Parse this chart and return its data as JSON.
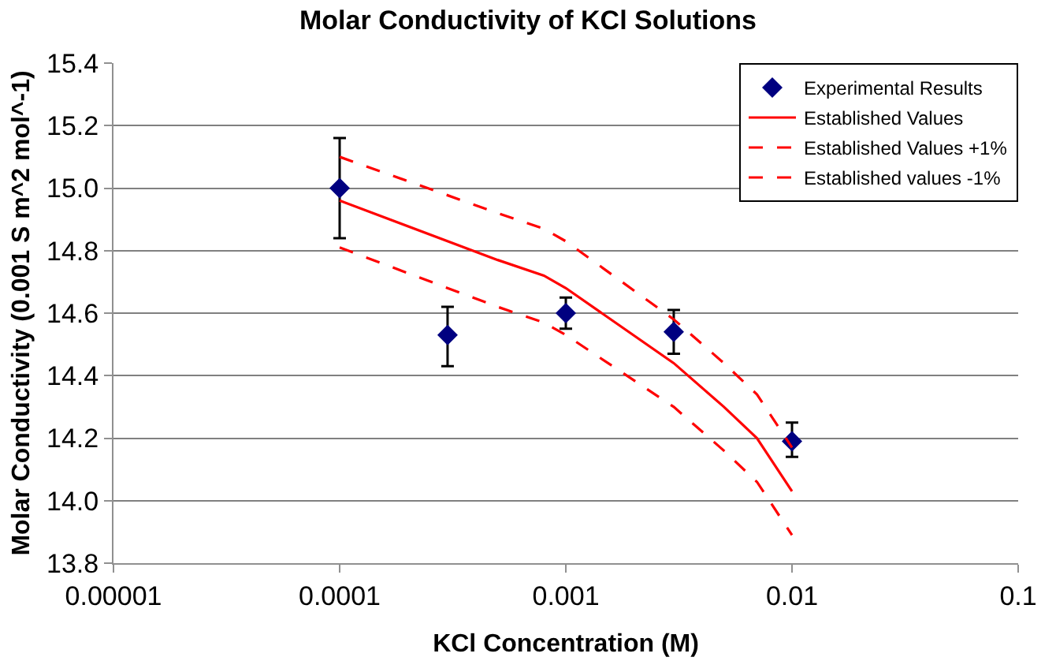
{
  "chart_data": {
    "type": "scatter",
    "title": "Molar Conductivity of KCl Solutions",
    "xlabel": "KCl Concentration (M)",
    "ylabel": "Molar Conductivity (0.001 S m^2 mol^-1)",
    "log": "x",
    "xlim": [
      1e-05,
      0.1
    ],
    "xticks": [
      {
        "value": 1e-05,
        "label": "0.00001"
      },
      {
        "value": 0.0001,
        "label": "0.0001"
      },
      {
        "value": 0.001,
        "label": "0.001"
      },
      {
        "value": 0.01,
        "label": "0.01"
      },
      {
        "value": 0.1,
        "label": "0.1"
      }
    ],
    "ylim": [
      13.8,
      15.4
    ],
    "yticks": [
      {
        "value": 13.8,
        "label": "13.8"
      },
      {
        "value": 14.0,
        "label": "14.0"
      },
      {
        "value": 14.2,
        "label": "14.2"
      },
      {
        "value": 14.4,
        "label": "14.4"
      },
      {
        "value": 14.6,
        "label": "14.6"
      },
      {
        "value": 14.8,
        "label": "14.8"
      },
      {
        "value": 15.0,
        "label": "15.0"
      },
      {
        "value": 15.2,
        "label": "15.2"
      },
      {
        "value": 15.4,
        "label": "15.4"
      }
    ],
    "grid": "y",
    "legend": "top right",
    "series": [
      {
        "name": "Experimental Results",
        "marker": "diamond",
        "color": "#000080",
        "x": [
          0.0001,
          0.0003,
          0.001,
          0.003,
          0.01
        ],
        "values": [
          15.0,
          14.53,
          14.6,
          14.54,
          14.19
        ],
        "errors": [
          [
            14.84,
            15.16
          ],
          [
            14.43,
            14.62
          ],
          [
            14.55,
            14.65
          ],
          [
            14.47,
            14.61
          ],
          [
            14.14,
            14.25
          ]
        ]
      },
      {
        "name": "Established Values",
        "type": "line",
        "color": "#ff0000",
        "line_style": "solid",
        "x": [
          0.0001,
          0.0005,
          0.0008,
          0.001,
          0.003,
          0.005,
          0.007,
          0.01
        ],
        "values": [
          14.96,
          14.77,
          14.72,
          14.68,
          14.44,
          14.3,
          14.2,
          14.03
        ]
      },
      {
        "name": "Established Values +1%",
        "type": "line",
        "color": "#ff0000",
        "line_style": "dashed",
        "x": [
          0.0001,
          0.0005,
          0.0008,
          0.001,
          0.003,
          0.005,
          0.007,
          0.01
        ],
        "values": [
          15.1,
          14.92,
          14.87,
          14.83,
          14.58,
          14.44,
          14.34,
          14.17
        ]
      },
      {
        "name": "Established values -1%",
        "type": "line",
        "color": "#ff0000",
        "line_style": "dashed",
        "x": [
          0.0001,
          0.0005,
          0.0008,
          0.001,
          0.003,
          0.005,
          0.007,
          0.01
        ],
        "values": [
          14.81,
          14.62,
          14.57,
          14.53,
          14.3,
          14.16,
          14.06,
          13.89
        ]
      }
    ]
  }
}
